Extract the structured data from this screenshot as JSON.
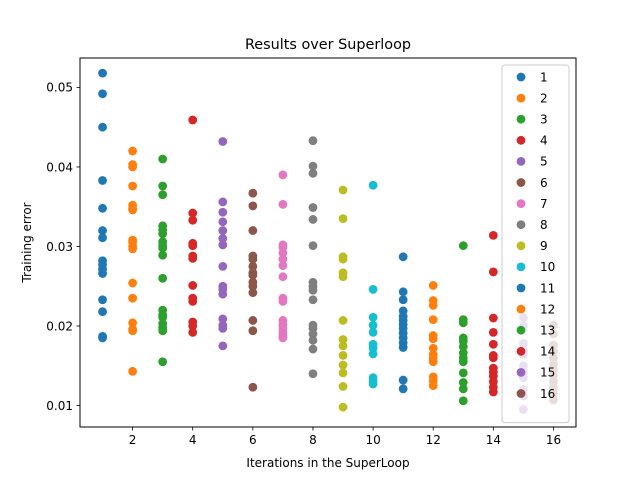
{
  "chart_data": {
    "type": "scatter",
    "title": "Results over Superloop",
    "xlabel": "Iterations in the SuperLoop",
    "ylabel": "Training error",
    "xlim": [
      0.25,
      16.75
    ],
    "ylim": [
      0.0073,
      0.0537
    ],
    "xticks": [
      2,
      4,
      6,
      8,
      10,
      12,
      14,
      16
    ],
    "yticks": [
      0.01,
      0.02,
      0.03,
      0.04,
      0.05
    ],
    "ytick_labels": [
      "0.01",
      "0.02",
      "0.03",
      "0.04",
      "0.05"
    ],
    "grid": false,
    "legend_position": "upper right",
    "series": [
      {
        "name": "1",
        "color": "#1f77b4",
        "x": 1,
        "values": [
          0.0518,
          0.0492,
          0.045,
          0.0383,
          0.0348,
          0.032,
          0.0311,
          0.0282,
          0.0277,
          0.0271,
          0.0266,
          0.0233,
          0.0218,
          0.0187,
          0.0185
        ]
      },
      {
        "name": "2",
        "color": "#ff7f0e",
        "x": 2,
        "values": [
          0.042,
          0.0403,
          0.04,
          0.0376,
          0.0352,
          0.0348,
          0.0346,
          0.0308,
          0.0305,
          0.03,
          0.0297,
          0.0254,
          0.0235,
          0.0204,
          0.0196,
          0.0194,
          0.0143
        ]
      },
      {
        "name": "3",
        "color": "#2ca02c",
        "x": 3,
        "values": [
          0.041,
          0.0376,
          0.0365,
          0.0326,
          0.0321,
          0.0316,
          0.0306,
          0.0301,
          0.0298,
          0.0289,
          0.026,
          0.022,
          0.0214,
          0.0211,
          0.0203,
          0.0198,
          0.0194,
          0.0155
        ]
      },
      {
        "name": "4",
        "color": "#d62728",
        "x": 4,
        "values": [
          0.0459,
          0.0342,
          0.0333,
          0.0304,
          0.0301,
          0.0288,
          0.0285,
          0.0251,
          0.0235,
          0.0231,
          0.0205,
          0.02,
          0.0192
        ]
      },
      {
        "name": "5",
        "color": "#9467bd",
        "x": 5,
        "values": [
          0.0432,
          0.0356,
          0.0343,
          0.0331,
          0.032,
          0.031,
          0.0302,
          0.0275,
          0.025,
          0.0246,
          0.024,
          0.0209,
          0.0201,
          0.0197,
          0.0175
        ]
      },
      {
        "name": "6",
        "color": "#8c564b",
        "x": 6,
        "values": [
          0.0367,
          0.0351,
          0.032,
          0.0288,
          0.0284,
          0.0275,
          0.0267,
          0.0264,
          0.0255,
          0.025,
          0.0242,
          0.0207,
          0.0194,
          0.0123
        ]
      },
      {
        "name": "7",
        "color": "#e377c2",
        "x": 7,
        "values": [
          0.039,
          0.0353,
          0.0302,
          0.0299,
          0.0292,
          0.0284,
          0.0276,
          0.0262,
          0.0235,
          0.0231,
          0.0207,
          0.0202,
          0.0197,
          0.0192,
          0.0188,
          0.0185
        ]
      },
      {
        "name": "8",
        "color": "#7f7f7f",
        "x": 8,
        "values": [
          0.0433,
          0.0401,
          0.0392,
          0.0349,
          0.0334,
          0.0301,
          0.0255,
          0.025,
          0.0245,
          0.0233,
          0.0201,
          0.0197,
          0.019,
          0.0182,
          0.0171,
          0.014
        ]
      },
      {
        "name": "9",
        "color": "#bcbd22",
        "x": 9,
        "values": [
          0.0371,
          0.0335,
          0.0287,
          0.0284,
          0.0267,
          0.0262,
          0.0207,
          0.0183,
          0.0175,
          0.0163,
          0.0151,
          0.0141,
          0.0124,
          0.0098
        ]
      },
      {
        "name": "10",
        "color": "#17becf",
        "x": 10,
        "values": [
          0.0377,
          0.0246,
          0.0211,
          0.0201,
          0.0192,
          0.0177,
          0.0172,
          0.0165,
          0.0135,
          0.0131,
          0.0127
        ]
      },
      {
        "name": "11",
        "color": "#1f77b4",
        "x": 11,
        "values": [
          0.0287,
          0.0243,
          0.0233,
          0.0219,
          0.0212,
          0.0207,
          0.0202,
          0.0197,
          0.0191,
          0.0185,
          0.0179,
          0.0173,
          0.0132,
          0.0121
        ]
      },
      {
        "name": "12",
        "color": "#ff7f0e",
        "x": 12,
        "values": [
          0.0251,
          0.0232,
          0.0226,
          0.0208,
          0.0188,
          0.0184,
          0.0172,
          0.0164,
          0.0159,
          0.0155,
          0.0136,
          0.0131,
          0.0125
        ]
      },
      {
        "name": "13",
        "color": "#2ca02c",
        "x": 13,
        "values": [
          0.0301,
          0.0208,
          0.0204,
          0.0185,
          0.0181,
          0.0174,
          0.0166,
          0.016,
          0.0155,
          0.0141,
          0.0129,
          0.0121,
          0.0106
        ]
      },
      {
        "name": "14",
        "color": "#d62728",
        "x": 14,
        "values": [
          0.0314,
          0.0268,
          0.021,
          0.0192,
          0.0177,
          0.0163,
          0.016,
          0.0147,
          0.0142,
          0.0137,
          0.013,
          0.0123,
          0.0117
        ]
      },
      {
        "name": "15",
        "color": "#9467bd",
        "x": 15,
        "values": [
          0.021,
          0.02,
          0.0178,
          0.017,
          0.0164,
          0.015,
          0.0142,
          0.0135,
          0.012,
          0.0112,
          0.0095
        ]
      },
      {
        "name": "16",
        "color": "#8c564b",
        "x": 16,
        "values": [
          0.0201,
          0.019,
          0.0176,
          0.0168,
          0.016,
          0.0152,
          0.0145,
          0.0138,
          0.013,
          0.0122,
          0.0115,
          0.0107
        ]
      }
    ]
  }
}
